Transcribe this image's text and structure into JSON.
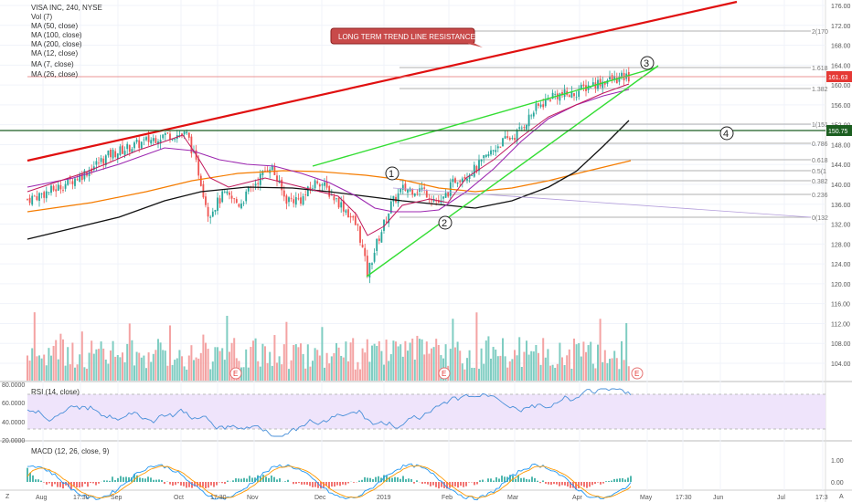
{
  "legend": {
    "symbol": "VISA INC, 240, NYSE",
    "items": [
      "Vol (7)",
      "MA (50, close)",
      "MA (100, close)",
      "MA (200, close)",
      "MA (12, close)",
      "MA (7, close)",
      "MA (26, close)"
    ]
  },
  "annotation": {
    "text": "LONG TERM TREND LINE RESISTANCE"
  },
  "wave_labels": [
    "1",
    "2",
    "3",
    "4"
  ],
  "earnings_marker": "E",
  "price_axis": {
    "ticks": [
      "176.00",
      "172.00",
      "168.00",
      "164.00",
      "160.00",
      "156.00",
      "152.00",
      "148.00",
      "144.00",
      "140.00",
      "136.00",
      "132.00",
      "128.00",
      "124.00",
      "120.00",
      "116.00",
      "112.00",
      "108.00",
      "104.00"
    ],
    "tags": [
      {
        "text": "161.63",
        "color": "#e53935"
      },
      {
        "text": "150.75",
        "color": "#1b5e20"
      }
    ]
  },
  "fib_levels": [
    "2(170",
    "1.618",
    "1.382",
    "1(151",
    "0.786",
    "0.618",
    "0.5(1",
    "0.382",
    "0.236",
    "0(132"
  ],
  "rsi": {
    "label": "RSI (14, close)",
    "ticks": [
      "80.0000",
      "60.0000",
      "40.0000",
      "20.0000"
    ]
  },
  "macd": {
    "label": "MACD (12, 26, close, 9)",
    "ticks": [
      "1.00",
      "0.00"
    ]
  },
  "time_axis": {
    "labels": [
      "Aug",
      "17:30",
      "Sep",
      "Oct",
      "17:30",
      "Nov",
      "Dec",
      "2019",
      "Feb",
      "Mar",
      "Apr",
      "May",
      "17:30",
      "Jun",
      "Jul",
      "17:3"
    ]
  },
  "toolbar": {
    "left_icon": "Z",
    "right_icon": "A"
  },
  "colors": {
    "up": "#26a69a",
    "down": "#ef5350",
    "trend_resistance": "#e01010",
    "channel": "#33dd33",
    "ma200": "#111111",
    "ma100": "#f57c00",
    "ma50": "#7b1fa2",
    "support": "#1b5e20"
  },
  "chart_data": {
    "type": "line",
    "title": "VISA INC, 240, NYSE",
    "ylim": [
      102,
      178
    ],
    "x": [
      "Aug",
      "Sep",
      "Oct",
      "Nov",
      "Dec",
      "2019",
      "Feb",
      "Mar",
      "Apr"
    ],
    "series": [
      {
        "name": "MA (7, close)",
        "values": [
          137,
          143,
          150,
          138,
          141,
          125,
          139,
          150,
          160
        ]
      }
    ],
    "last_price": 161.63,
    "support_level": 150.75
  }
}
